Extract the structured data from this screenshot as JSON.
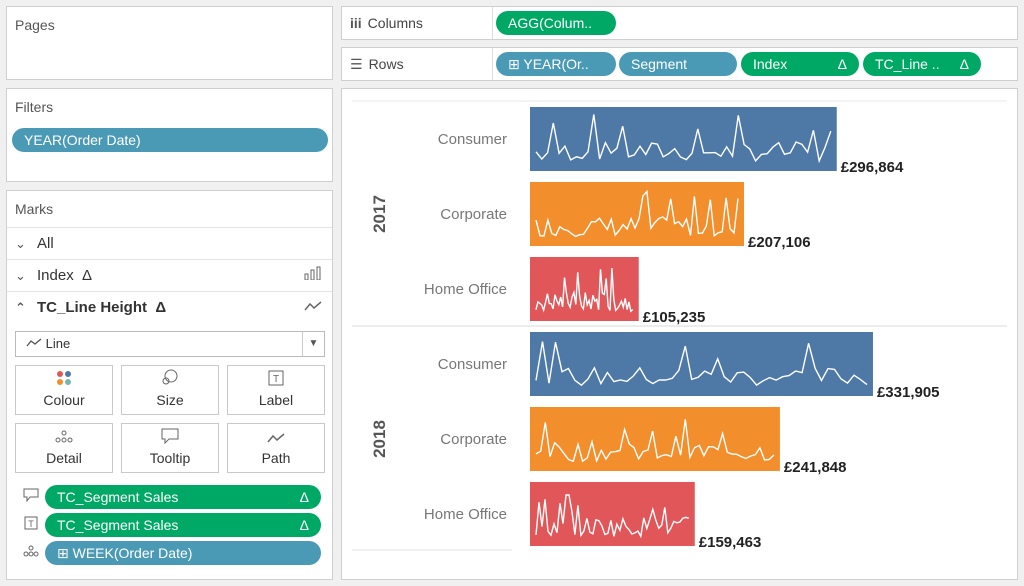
{
  "pages": {
    "title": "Pages"
  },
  "filters": {
    "title": "Filters",
    "items": [
      "YEAR(Order Date)"
    ]
  },
  "marks": {
    "title": "Marks",
    "all_label": "All",
    "index_label": "Index",
    "delta_symbol": "Δ",
    "tc_line_label": "TC_Line Height",
    "mark_type": "Line",
    "buttons": {
      "colour": "Colour",
      "size": "Size",
      "label": "Label",
      "detail": "Detail",
      "tooltip": "Tooltip",
      "path": "Path"
    },
    "fields": [
      {
        "name": "TC_Segment Sales",
        "icon": "tooltip-icon",
        "type": "green",
        "delta": "Δ"
      },
      {
        "name": "TC_Segment Sales",
        "icon": "label-icon",
        "type": "green",
        "delta": "Δ"
      },
      {
        "name": "⊞ WEEK(Order Date)",
        "icon": "detail-icon",
        "type": "blue",
        "delta": ""
      }
    ]
  },
  "shelves": {
    "columns_label": "Columns",
    "rows_label": "Rows",
    "columns_pills": [
      {
        "label": "AGG(Colum..",
        "type": "green"
      }
    ],
    "rows_pills": [
      {
        "label": "⊞ YEAR(Or..",
        "type": "blue"
      },
      {
        "label": "Segment",
        "type": "blue"
      },
      {
        "label": "Index",
        "type": "green",
        "delta": "Δ"
      },
      {
        "label": "TC_Line ..",
        "type": "green",
        "delta": "Δ"
      }
    ]
  },
  "colors": {
    "consumer": "#4e79a7",
    "corporate": "#f28e2b",
    "home_office": "#e15759",
    "pill_green": "#00a866",
    "pill_blue": "#4b9ab5"
  },
  "chart_data": {
    "type": "bar",
    "years": [
      "2017",
      "2018"
    ],
    "categories": [
      "Consumer",
      "Corporate",
      "Home Office"
    ],
    "series": [
      {
        "year": "2017",
        "values": [
          296864,
          207106,
          105235
        ],
        "labels": [
          "£296,864",
          "£207,106",
          "£105,235"
        ]
      },
      {
        "year": "2018",
        "values": [
          331905,
          241848,
          159463
        ],
        "labels": [
          "£331,905",
          "£241,848",
          "£159,463"
        ]
      }
    ],
    "overlay": "weekly sales sparkline drawn inside each bar"
  }
}
